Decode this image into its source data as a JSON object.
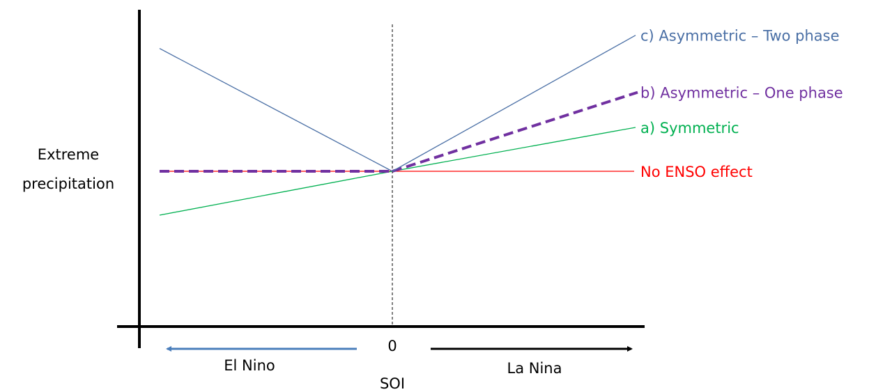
{
  "y_axis_label": [
    "Extreme",
    "precipitation"
  ],
  "x_axis_label": "SOI",
  "zero_label": "0",
  "left_direction_label": "El Nino",
  "right_direction_label": "La Nina",
  "colors": {
    "axis": "#000000",
    "el_nino_arrow": "#4a7ebb",
    "la_nina_arrow": "#000000"
  },
  "lines": [
    {
      "id": "no-enso",
      "label": "No ENSO effect",
      "color": "#ff0000",
      "style": "solid",
      "left": 0,
      "right": 0
    },
    {
      "id": "symmetric",
      "label": "a) Symmetric",
      "color": "#00b050",
      "style": "solid",
      "left": -1,
      "right": 1
    },
    {
      "id": "one-phase",
      "label": "b) Asymmetric – One phase",
      "color": "#7030a0",
      "style": "dashed",
      "left": 0,
      "right": 1.8
    },
    {
      "id": "two-phase",
      "label": "c) Asymmetric – Two phase",
      "color": "#4a6fa5",
      "style": "solid",
      "left": 2.8,
      "right": 3.1
    }
  ]
}
